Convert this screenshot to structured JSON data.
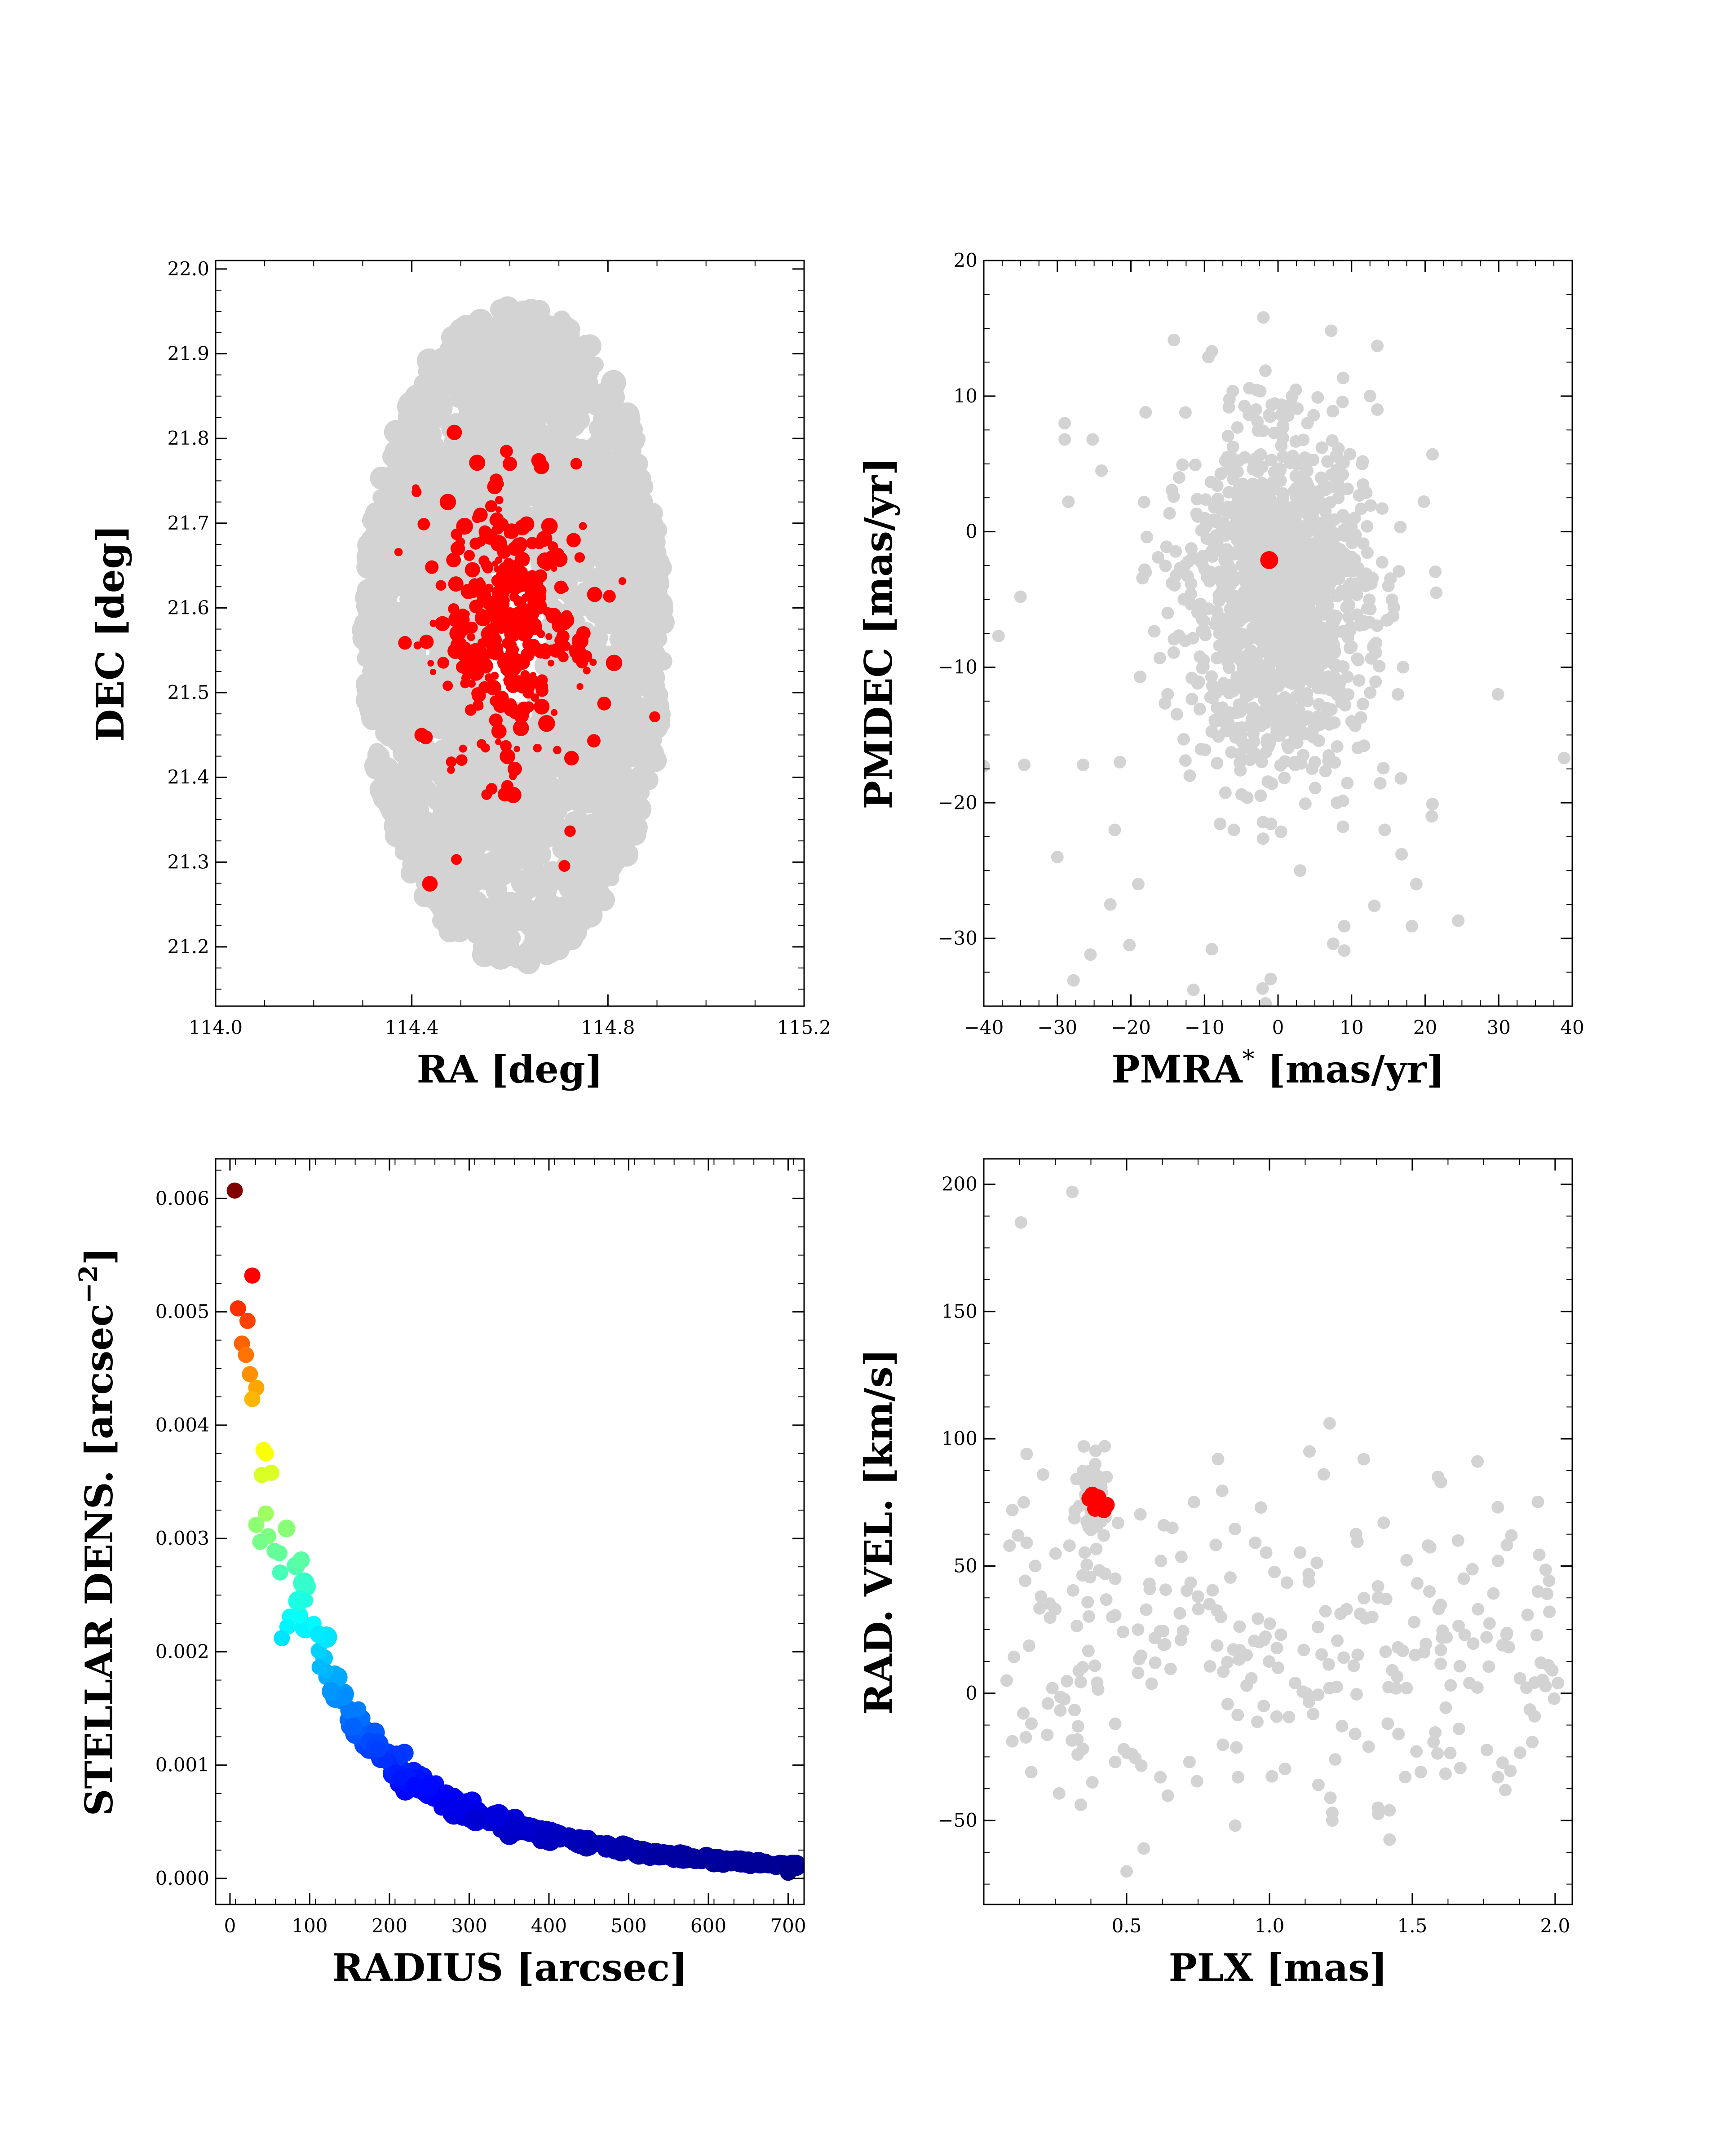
{
  "colors": {
    "field": "#d3d3d3",
    "members": "#ff0000",
    "background": "#ffffff",
    "density_colormap": "jet"
  },
  "chart_data": [
    {
      "id": "sky",
      "type": "scatter",
      "xlabel": "RA [deg]",
      "ylabel": "DEC [deg]",
      "xlim": [
        114.0,
        115.2
      ],
      "ylim": [
        21.13,
        22.01
      ],
      "xticks": [
        114.0,
        114.4,
        114.8,
        115.2
      ],
      "xtick_labels": [
        "114.0",
        "114.4",
        "114.8",
        "115.2"
      ],
      "yticks": [
        21.2,
        21.3,
        21.4,
        21.5,
        21.6,
        21.7,
        21.8,
        21.9,
        22.0
      ],
      "ytick_labels": [
        "21.2",
        "21.3",
        "21.4",
        "21.5",
        "21.6",
        "21.7",
        "21.8",
        "21.9",
        "22.0"
      ],
      "grid": false,
      "series": [
        {
          "role": "field",
          "color": "gray",
          "distribution": "elliptical field",
          "center": [
            114.61,
            21.57
          ],
          "radius": [
            0.31,
            0.39
          ],
          "count": 2200,
          "points": []
        },
        {
          "role": "members",
          "color": "red",
          "distribution": "gaussian cluster",
          "center": [
            114.6,
            21.575
          ],
          "spread": [
            0.06,
            0.07
          ],
          "count": 350,
          "points": [
            [
              114.6,
              21.77
            ],
            [
              114.61,
              21.67
            ],
            [
              114.73,
              21.68
            ],
            [
              114.43,
              21.56
            ],
            [
              114.75,
              21.57
            ],
            [
              114.42,
              21.45
            ],
            [
              114.61,
              21.41
            ],
            [
              114.59,
              21.38
            ],
            [
              114.6,
              21.59
            ],
            [
              114.53,
              21.55
            ],
            [
              114.66,
              21.62
            ]
          ]
        }
      ]
    },
    {
      "id": "proper-motion",
      "type": "scatter",
      "xlabel": "PMRA",
      "xlabel_sup": "*",
      "xlabel_rest": " [mas/yr]",
      "ylabel": "PMDEC [mas/yr]",
      "xlim": [
        -40,
        40
      ],
      "ylim": [
        -35,
        20
      ],
      "xticks": [
        -40,
        -30,
        -20,
        -10,
        0,
        10,
        20,
        30,
        40
      ],
      "xtick_labels": [
        "−40",
        "−30",
        "−20",
        "−10",
        "0",
        "10",
        "20",
        "30",
        "40"
      ],
      "yticks": [
        -30,
        -20,
        -10,
        0,
        10,
        20
      ],
      "ytick_labels": [
        "−30",
        "−20",
        "−10",
        "0",
        "10",
        "20"
      ],
      "grid": false,
      "series": [
        {
          "role": "field",
          "color": "gray",
          "distribution": "dense core with sparse halo",
          "center": [
            0,
            -5
          ],
          "spread": [
            6,
            6
          ],
          "count": 1400,
          "points": [
            [
              -2,
              15.8
            ],
            [
              13.5,
              13.7
            ],
            [
              -9,
              13.3
            ],
            [
              -29,
              8
            ],
            [
              -29,
              6.8
            ],
            [
              -18,
              8.8
            ],
            [
              12.5,
              10
            ],
            [
              13.5,
              9
            ],
            [
              21,
              5.7
            ],
            [
              -28.5,
              2.2
            ],
            [
              -35,
              -4.8
            ],
            [
              -38,
              -7.7
            ],
            [
              29.9,
              -12
            ],
            [
              38.9,
              -16.7
            ],
            [
              -40,
              -17.3
            ],
            [
              -34.5,
              -17.2
            ],
            [
              -26.5,
              -17.2
            ],
            [
              -21.5,
              -17
            ],
            [
              -30,
              -24
            ],
            [
              -22.2,
              -22
            ],
            [
              -19,
              -26
            ],
            [
              -25.5,
              -31.2
            ],
            [
              -27.8,
              -33.1
            ],
            [
              -22.8,
              -27.5
            ],
            [
              -20.2,
              -30.5
            ],
            [
              -11.5,
              -33.8
            ],
            [
              -9,
              -30.8
            ],
            [
              -2.1,
              -33.7
            ],
            [
              -1.7,
              -34.8
            ],
            [
              9,
              -29.1
            ],
            [
              9,
              -30.9
            ],
            [
              7.5,
              -30.4
            ],
            [
              13.1,
              -27.6
            ],
            [
              18.2,
              -29.1
            ],
            [
              24.5,
              -28.7
            ],
            [
              -1,
              -33
            ],
            [
              14.5,
              -22
            ],
            [
              16.8,
              -23.8
            ],
            [
              20.9,
              -21
            ],
            [
              21,
              -20.1
            ],
            [
              18.8,
              -26
            ],
            [
              16.7,
              -18.2
            ],
            [
              -15,
              -6
            ],
            [
              -10,
              1
            ],
            [
              -5,
              -15
            ],
            [
              5,
              -17
            ],
            [
              8,
              -20
            ],
            [
              -12,
              -18
            ],
            [
              -6,
              -22
            ],
            [
              3,
              -25
            ],
            [
              10,
              -14
            ],
            [
              -15,
              -12
            ],
            [
              15,
              -4
            ],
            [
              -18,
              -3
            ],
            [
              17,
              -10
            ],
            [
              -3,
              9
            ],
            [
              4,
              8
            ],
            [
              -24,
              4.5
            ],
            [
              -25.2,
              6.8
            ]
          ]
        },
        {
          "role": "cluster-mean",
          "color": "red",
          "points": [
            [
              -1.2,
              -2.1
            ]
          ]
        }
      ]
    },
    {
      "id": "density-profile",
      "type": "scatter",
      "xlabel": "RADIUS [arcsec]",
      "ylabel": "STELLAR DENS. [arcsec",
      "ylabel_sup": "−2",
      "ylabel_rest": "]",
      "xlim": [
        -18,
        720
      ],
      "ylim": [
        -0.00023,
        0.00635
      ],
      "xticks": [
        0,
        100,
        200,
        300,
        400,
        500,
        600,
        700
      ],
      "xtick_labels": [
        "0",
        "100",
        "200",
        "300",
        "400",
        "500",
        "600",
        "700"
      ],
      "yticks": [
        0.0,
        0.001,
        0.002,
        0.003,
        0.004,
        0.005,
        0.006
      ],
      "ytick_labels": [
        "0.000",
        "0.001",
        "0.002",
        "0.003",
        "0.004",
        "0.005",
        "0.006"
      ],
      "grid": false,
      "colormap": "jet",
      "color_by": "y",
      "profile": "decreasing ~ 0.0048*exp(-r/60) + 0.0021*exp(-r/220)",
      "series": [
        {
          "role": "density",
          "count": 380,
          "points": [
            [
              6,
              0.00607
            ],
            [
              28,
              0.00532
            ],
            [
              10,
              0.00503
            ],
            [
              22,
              0.00492
            ],
            [
              15,
              0.00472
            ],
            [
              20,
              0.00462
            ],
            [
              25,
              0.00445
            ],
            [
              33,
              0.00433
            ],
            [
              28,
              0.00423
            ],
            [
              42,
              0.00378
            ],
            [
              45,
              0.00375
            ],
            [
              40,
              0.00356
            ],
            [
              52,
              0.00358
            ],
            [
              45,
              0.00322
            ],
            [
              33,
              0.00312
            ],
            [
              48,
              0.00302
            ],
            [
              38,
              0.00297
            ],
            [
              56,
              0.00289
            ],
            [
              62,
              0.00287
            ],
            [
              63,
              0.0027
            ],
            [
              75,
              0.00231
            ],
            [
              72,
              0.00222
            ],
            [
              65,
              0.00212
            ],
            [
              700,
              5e-05
            ],
            [
              705,
              8e-05
            ]
          ]
        }
      ]
    },
    {
      "id": "radial-velocity",
      "type": "scatter",
      "xlabel": "PLX [mas]",
      "ylabel": "RAD. VEL. [km/s]",
      "xlim": [
        0.0,
        2.06
      ],
      "ylim": [
        -83,
        210
      ],
      "xticks": [
        0.5,
        1.0,
        1.5,
        2.0
      ],
      "xtick_labels": [
        "0.5",
        "1.0",
        "1.5",
        "2.0"
      ],
      "yticks": [
        -50,
        0,
        50,
        100,
        150,
        200
      ],
      "ytick_labels": [
        "−50",
        "0",
        "50",
        "100",
        "150",
        "200"
      ],
      "grid": false,
      "series": [
        {
          "role": "field",
          "color": "gray",
          "count": 300,
          "points": [
            [
              0.13,
              185
            ],
            [
              0.31,
              197
            ],
            [
              0.15,
              94
            ],
            [
              0.1,
              72
            ],
            [
              0.09,
              58
            ],
            [
              0.12,
              62
            ],
            [
              0.14,
              75
            ],
            [
              0.08,
              5
            ],
            [
              0.25,
              33
            ],
            [
              0.3,
              58
            ],
            [
              0.35,
              97
            ],
            [
              0.39,
              90
            ],
            [
              0.43,
              85
            ],
            [
              0.38,
              -35
            ],
            [
              0.5,
              -70
            ],
            [
              0.56,
              -61
            ],
            [
              0.46,
              -27
            ],
            [
              0.49,
              -22
            ],
            [
              0.52,
              -24
            ],
            [
              0.88,
              -52
            ],
            [
              0.89,
              -33
            ],
            [
              1.22,
              -47
            ],
            [
              1.22,
              -50
            ],
            [
              1.38,
              -45
            ],
            [
              1.42,
              -46
            ],
            [
              1.53,
              -31
            ],
            [
              1.8,
              -33
            ],
            [
              1.6,
              83
            ],
            [
              1.59,
              85
            ],
            [
              1.33,
              92
            ],
            [
              1.14,
              95
            ],
            [
              1.19,
              86
            ],
            [
              0.82,
              92
            ],
            [
              1.66,
              60
            ],
            [
              1.8,
              52
            ],
            [
              1.94,
              40
            ],
            [
              1.98,
              32
            ],
            [
              1.99,
              9
            ],
            [
              2.01,
              4
            ],
            [
              1.95,
              12
            ],
            [
              1.73,
              33
            ],
            [
              1.68,
              45
            ],
            [
              0.63,
              66
            ],
            [
              0.66,
              65
            ],
            [
              0.62,
              52
            ],
            [
              0.97,
              73
            ],
            [
              1.4,
              67
            ],
            [
              1.38,
              42
            ],
            [
              1.56,
              40
            ],
            [
              1.27,
              33
            ],
            [
              1.17,
              26
            ],
            [
              1.12,
              17
            ],
            [
              1.03,
              10
            ],
            [
              0.92,
              3
            ],
            [
              0.75,
              38
            ],
            [
              0.58,
              43
            ],
            [
              0.83,
              30
            ],
            [
              0.54,
              25
            ],
            [
              0.6,
              12
            ],
            [
              1.23,
              -26
            ],
            [
              1.3,
              -16
            ],
            [
              1.43,
              9
            ],
            [
              1.51,
              15
            ],
            [
              1.48,
              2
            ],
            [
              1.6,
              17
            ],
            [
              1.7,
              4
            ],
            [
              1.83,
              23
            ],
            [
              0.24,
              2
            ],
            [
              0.2,
              38
            ],
            [
              0.18,
              50
            ],
            [
              0.42,
              62
            ],
            [
              0.46,
              45
            ],
            [
              0.45,
              30
            ],
            [
              0.63,
              19
            ],
            [
              0.54,
              8
            ],
            [
              0.33,
              -13
            ],
            [
              0.46,
              -12
            ],
            [
              0.72,
              -27
            ],
            [
              0.92,
              15
            ],
            [
              1.04,
              23
            ],
            [
              0.98,
              -5
            ],
            [
              1.09,
              4
            ],
            [
              1.21,
              2
            ],
            [
              1.26,
              14
            ],
            [
              1.36,
              30
            ],
            [
              1.62,
              22
            ],
            [
              1.76,
              22
            ],
            [
              1.45,
              18
            ]
          ]
        },
        {
          "role": "members",
          "color": "red",
          "points": [
            [
              0.37,
              76.5
            ],
            [
              0.38,
              78
            ],
            [
              0.4,
              75
            ],
            [
              0.41,
              73.5
            ],
            [
              0.39,
              72.5
            ],
            [
              0.43,
              74
            ],
            [
              0.42,
              72
            ],
            [
              0.4,
              77
            ],
            [
              0.41,
              74.5
            ]
          ]
        }
      ]
    }
  ]
}
